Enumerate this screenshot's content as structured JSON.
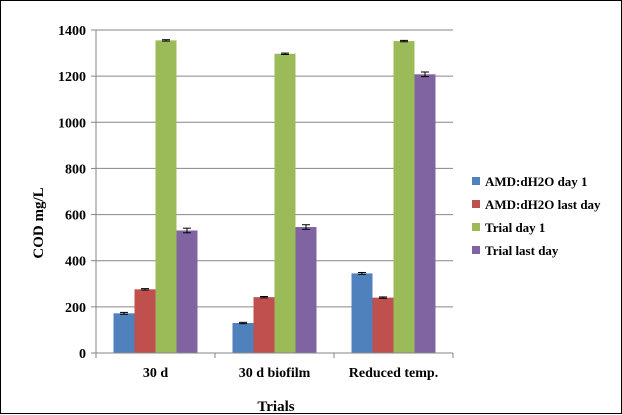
{
  "chart_data": {
    "type": "bar",
    "title": "",
    "xlabel": "Trials",
    "ylabel": "COD mg/L",
    "categories": [
      "30 d",
      "30 d biofilm",
      "Reduced temp."
    ],
    "ylim": [
      0,
      1400
    ],
    "yticks": [
      0,
      200,
      400,
      600,
      800,
      1000,
      1200,
      1400
    ],
    "grid": true,
    "legend_position": "right",
    "error_bars": true,
    "series": [
      {
        "name": "AMD:dH2O day 1",
        "color": "#4f81bd",
        "values": [
          172,
          130,
          345
        ],
        "errors": [
          4,
          3,
          4
        ]
      },
      {
        "name": "AMD:dH2O last day",
        "color": "#c0504d",
        "values": [
          276,
          242,
          240
        ],
        "errors": [
          3,
          3,
          3
        ]
      },
      {
        "name": "Trial day 1",
        "color": "#9bbb59",
        "values": [
          1355,
          1297,
          1352
        ],
        "errors": [
          3,
          3,
          3
        ]
      },
      {
        "name": "Trial last day",
        "color": "#8064a2",
        "values": [
          531,
          546,
          1208
        ],
        "errors": [
          10,
          10,
          10
        ]
      }
    ]
  }
}
